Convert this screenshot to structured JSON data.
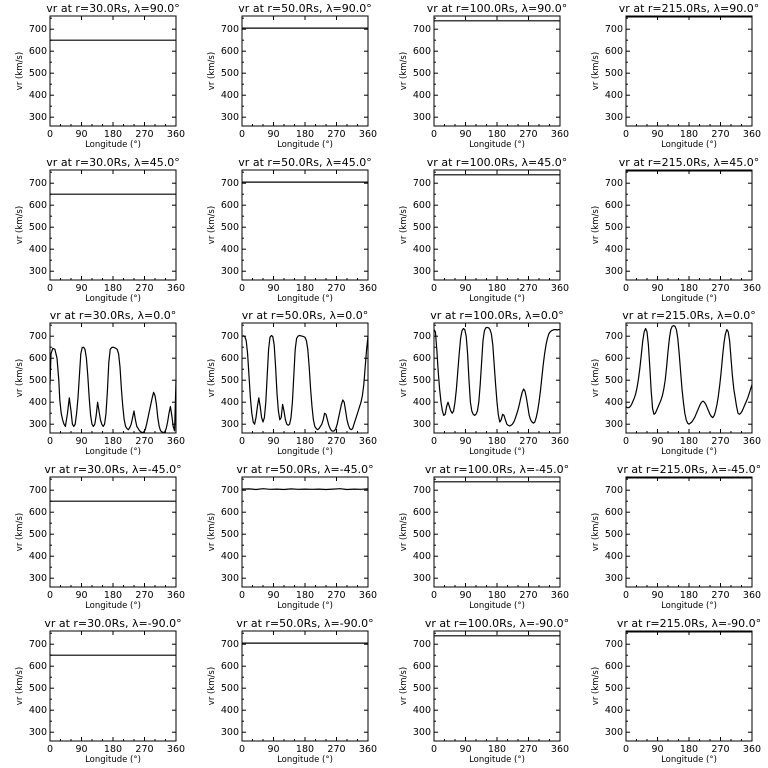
{
  "chart_data": {
    "type": "line",
    "layout": "5x4 grid of panels",
    "x_tick_labels": [
      "0",
      "90",
      "180",
      "270",
      "360"
    ],
    "y_tick_labels": [
      "300",
      "400",
      "500",
      "600",
      "700"
    ],
    "x_ticks": [
      0,
      90,
      180,
      270,
      360
    ],
    "y_ticks": [
      300,
      400,
      500,
      600,
      700
    ],
    "xlabel": "Longitude (°)",
    "ylabel": "vr (km/s)",
    "xlim": [
      0,
      360
    ],
    "ylim": [
      260,
      760
    ],
    "grid": false,
    "color": "#000000",
    "panels": [
      {
        "title": "vr at r=30.0Rs, λ=90.0°",
        "series": [
          {
            "x": [
              0,
              360
            ],
            "y": [
              650,
              650
            ]
          }
        ]
      },
      {
        "title": "vr at r=50.0Rs, λ=90.0°",
        "series": [
          {
            "x": [
              0,
              360
            ],
            "y": [
              705,
              705
            ]
          }
        ]
      },
      {
        "title": "vr at r=100.0Rs, λ=90.0°",
        "series": [
          {
            "x": [
              0,
              360
            ],
            "y": [
              738,
              738
            ]
          }
        ]
      },
      {
        "title": "vr at r=215.0Rs, λ=90.0°",
        "series": [
          {
            "x": [
              0,
              360
            ],
            "y": [
              756,
              756
            ]
          }
        ]
      },
      {
        "title": "vr at r=30.0Rs, λ=45.0°",
        "series": [
          {
            "x": [
              0,
              360
            ],
            "y": [
              650,
              650
            ]
          }
        ]
      },
      {
        "title": "vr at r=50.0Rs, λ=45.0°",
        "series": [
          {
            "x": [
              0,
              360
            ],
            "y": [
              705,
              705
            ]
          }
        ]
      },
      {
        "title": "vr at r=100.0Rs, λ=45.0°",
        "series": [
          {
            "x": [
              0,
              360
            ],
            "y": [
              738,
              738
            ]
          }
        ]
      },
      {
        "title": "vr at r=215.0Rs, λ=45.0°",
        "series": [
          {
            "x": [
              0,
              360
            ],
            "y": [
              756,
              756
            ]
          }
        ]
      },
      {
        "title": "vr at r=30.0Rs, λ=0.0°",
        "series": [
          {
            "x": [
              0,
              3,
              8,
              14,
              20,
              25,
              28,
              32,
              36,
              40,
              44,
              50,
              55,
              60,
              64,
              68,
              72,
              76,
              80,
              84,
              88,
              92,
              96,
              100,
              104,
              108,
              112,
              116,
              120,
              124,
              128,
              132,
              136,
              140,
              144,
              148,
              152,
              156,
              160,
              164,
              168,
              172,
              176,
              180,
              184,
              188,
              192,
              196,
              200,
              204,
              208,
              212,
              216,
              220,
              224,
              228,
              232,
              236,
              240,
              244,
              248,
              252,
              256,
              260,
              264,
              268,
              272,
              276,
              280,
              284,
              288,
              292,
              296,
              300,
              304,
              308,
              312,
              316,
              320,
              324,
              328,
              332,
              336,
              340,
              344,
              348,
              352,
              356,
              360
            ],
            "y": [
              480,
              620,
              645,
              640,
              600,
              500,
              410,
              350,
              320,
              300,
              290,
              350,
              420,
              360,
              300,
              290,
              300,
              350,
              420,
              520,
              620,
              648,
              650,
              640,
              600,
              520,
              420,
              340,
              300,
              290,
              300,
              340,
              400,
              360,
              320,
              300,
              290,
              300,
              350,
              450,
              580,
              640,
              648,
              650,
              648,
              645,
              640,
              620,
              560,
              460,
              380,
              320,
              290,
              280,
              275,
              285,
              300,
              330,
              360,
              320,
              290,
              280,
              270,
              265,
              262,
              265,
              275,
              300,
              330,
              360,
              390,
              420,
              445,
              430,
              390,
              330,
              290,
              270,
              265,
              262,
              265,
              280,
              310,
              350,
              380,
              340,
              290,
              270,
              500
            ]
          }
        ]
      },
      {
        "title": "vr at r=50.0Rs, λ=0.0°",
        "series": [
          {
            "x": [
              0,
              4,
              8,
              12,
              16,
              20,
              24,
              28,
              32,
              36,
              40,
              44,
              48,
              52,
              56,
              60,
              64,
              68,
              72,
              76,
              80,
              84,
              88,
              92,
              96,
              100,
              104,
              108,
              112,
              116,
              120,
              124,
              128,
              132,
              136,
              140,
              144,
              148,
              152,
              156,
              160,
              164,
              168,
              172,
              176,
              180,
              184,
              188,
              192,
              196,
              200,
              204,
              208,
              212,
              216,
              220,
              224,
              228,
              232,
              236,
              240,
              244,
              248,
              252,
              256,
              260,
              264,
              268,
              272,
              276,
              280,
              284,
              288,
              292,
              296,
              300,
              304,
              308,
              312,
              316,
              320,
              324,
              328,
              332,
              336,
              340,
              344,
              348,
              352,
              356,
              360
            ],
            "y": [
              700,
              702,
              698,
              680,
              620,
              520,
              420,
              350,
              310,
              300,
              330,
              380,
              420,
              380,
              330,
              310,
              330,
              400,
              520,
              640,
              695,
              703,
              698,
              660,
              560,
              440,
              360,
              320,
              330,
              390,
              360,
              320,
              300,
              295,
              300,
              330,
              400,
              520,
              640,
              690,
              700,
              703,
              702,
              700,
              698,
              695,
              680,
              640,
              560,
              460,
              380,
              320,
              290,
              280,
              275,
              280,
              290,
              300,
              320,
              350,
              345,
              320,
              295,
              280,
              270,
              268,
              270,
              280,
              300,
              330,
              360,
              390,
              410,
              400,
              360,
              320,
              295,
              280,
              275,
              280,
              300,
              320,
              340,
              360,
              380,
              400,
              430,
              480,
              560,
              640,
              700
            ]
          }
        ]
      },
      {
        "title": "vr at r=100.0Rs, λ=0.0°",
        "series": [
          {
            "x": [
              0,
              4,
              8,
              12,
              16,
              20,
              24,
              28,
              32,
              36,
              40,
              44,
              48,
              52,
              56,
              60,
              64,
              68,
              72,
              76,
              80,
              84,
              88,
              92,
              96,
              100,
              104,
              108,
              112,
              116,
              120,
              124,
              128,
              132,
              136,
              140,
              144,
              148,
              152,
              156,
              160,
              164,
              168,
              172,
              176,
              180,
              184,
              188,
              192,
              196,
              200,
              204,
              208,
              212,
              216,
              220,
              224,
              228,
              232,
              236,
              240,
              244,
              248,
              252,
              256,
              260,
              264,
              268,
              272,
              276,
              280,
              284,
              288,
              292,
              296,
              300,
              304,
              308,
              312,
              316,
              320,
              324,
              328,
              332,
              336,
              340,
              344,
              348,
              352,
              356,
              360
            ],
            "y": [
              730,
              720,
              640,
              540,
              460,
              400,
              360,
              340,
              345,
              380,
              400,
              380,
              360,
              350,
              360,
              400,
              460,
              540,
              620,
              690,
              725,
              735,
              730,
              700,
              620,
              500,
              400,
              360,
              345,
              340,
              345,
              360,
              400,
              480,
              580,
              680,
              725,
              738,
              740,
              738,
              730,
              710,
              660,
              570,
              480,
              400,
              340,
              310,
              320,
              345,
              340,
              320,
              300,
              295,
              292,
              295,
              300,
              310,
              325,
              345,
              365,
              390,
              420,
              445,
              460,
              450,
              420,
              380,
              340,
              320,
              310,
              305,
              310,
              330,
              360,
              400,
              450,
              510,
              570,
              620,
              660,
              690,
              710,
              720,
              725,
              728,
              730,
              730,
              728,
              730,
              730
            ]
          }
        ]
      },
      {
        "title": "vr at r=215.0Rs, λ=0.0°",
        "series": [
          {
            "x": [
              0,
              4,
              8,
              12,
              16,
              20,
              24,
              28,
              32,
              36,
              40,
              44,
              48,
              52,
              56,
              60,
              64,
              68,
              72,
              76,
              80,
              84,
              88,
              92,
              96,
              100,
              104,
              108,
              112,
              116,
              120,
              124,
              128,
              132,
              136,
              140,
              144,
              148,
              152,
              156,
              160,
              164,
              168,
              172,
              176,
              180,
              184,
              188,
              192,
              196,
              200,
              204,
              208,
              212,
              216,
              220,
              224,
              228,
              232,
              236,
              240,
              244,
              248,
              252,
              256,
              260,
              264,
              268,
              272,
              276,
              280,
              284,
              288,
              292,
              296,
              300,
              304,
              308,
              312,
              316,
              320,
              324,
              328,
              332,
              336,
              340,
              344,
              348,
              352,
              356,
              360
            ],
            "y": [
              380,
              375,
              375,
              380,
              390,
              405,
              420,
              440,
              470,
              510,
              560,
              620,
              680,
              720,
              735,
              720,
              660,
              560,
              450,
              370,
              345,
              350,
              365,
              380,
              395,
              410,
              430,
              460,
              500,
              560,
              630,
              690,
              730,
              745,
              748,
              745,
              730,
              690,
              620,
              540,
              460,
              400,
              350,
              320,
              305,
              300,
              305,
              310,
              320,
              330,
              345,
              360,
              375,
              390,
              400,
              405,
              400,
              390,
              375,
              360,
              345,
              335,
              330,
              340,
              360,
              390,
              430,
              480,
              540,
              610,
              670,
              710,
              730,
              720,
              680,
              600,
              520,
              460,
              420,
              380,
              350,
              345,
              350,
              360,
              375,
              390,
              405,
              420,
              440,
              460,
              480
            ]
          }
        ]
      },
      {
        "title": "vr at r=30.0Rs, λ=-45.0°",
        "series": [
          {
            "x": [
              0,
              360
            ],
            "y": [
              650,
              650
            ]
          }
        ]
      },
      {
        "title": "vr at r=50.0Rs, λ=-45.0°",
        "series": [
          {
            "x": [
              0,
              20,
              40,
              60,
              80,
              100,
              120,
              140,
              160,
              180,
              200,
              220,
              240,
              260,
              280,
              300,
              320,
              340,
              360
            ],
            "y": [
              705,
              706,
              703,
              707,
              704,
              705,
              703,
              706,
              704,
              705,
              704,
              705,
              703,
              705,
              707,
              703,
              705,
              704,
              706
            ]
          }
        ]
      },
      {
        "title": "vr at r=100.0Rs, λ=-45.0°",
        "series": [
          {
            "x": [
              0,
              360
            ],
            "y": [
              738,
              738
            ]
          }
        ]
      },
      {
        "title": "vr at r=215.0Rs, λ=-45.0°",
        "series": [
          {
            "x": [
              0,
              360
            ],
            "y": [
              756,
              756
            ]
          }
        ]
      },
      {
        "title": "vr at r=30.0Rs, λ=-90.0°",
        "series": [
          {
            "x": [
              0,
              360
            ],
            "y": [
              650,
              650
            ]
          }
        ]
      },
      {
        "title": "vr at r=50.0Rs, λ=-90.0°",
        "series": [
          {
            "x": [
              0,
              360
            ],
            "y": [
              705,
              705
            ]
          }
        ]
      },
      {
        "title": "vr at r=100.0Rs, λ=-90.0°",
        "series": [
          {
            "x": [
              0,
              360
            ],
            "y": [
              738,
              738
            ]
          }
        ]
      },
      {
        "title": "vr at r=215.0Rs, λ=-90.0°",
        "series": [
          {
            "x": [
              0,
              360
            ],
            "y": [
              756,
              756
            ]
          }
        ]
      }
    ]
  }
}
